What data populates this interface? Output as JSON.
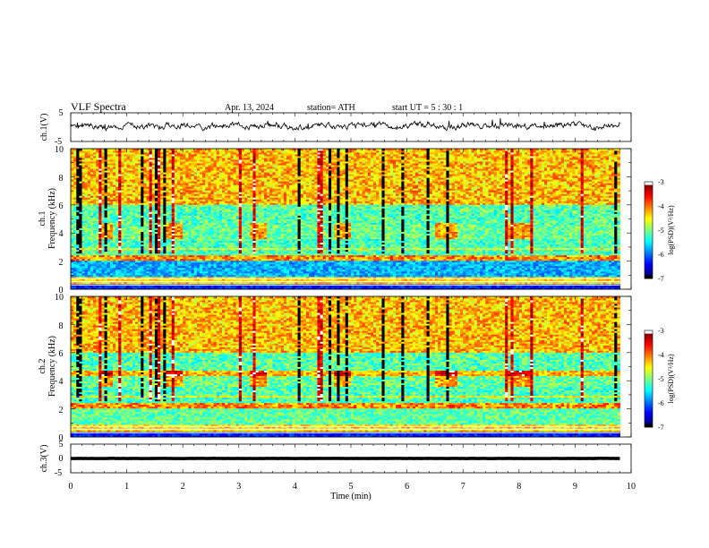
{
  "header": {
    "title": "VLF  Spectra",
    "date": "Apr. 13, 2024",
    "station": "station= ATH",
    "start": "start  UT  =    5  : 30 : 1"
  },
  "chart_data": [
    {
      "type": "line",
      "ylabel": "ch.1(V)",
      "ylim": [
        -5,
        5
      ],
      "yticks": [
        "5",
        "-5"
      ],
      "xlim": [
        0,
        10
      ],
      "baseline": 0.4,
      "description_color": "#000000"
    },
    {
      "type": "heatmap",
      "ylabel_line1": "ch.1",
      "ylabel_line2": "Frequency (kHz)",
      "ylim": [
        0,
        10
      ],
      "yticks": [
        "0",
        "2",
        "4",
        "6",
        "8",
        "10"
      ],
      "xlim": [
        0,
        10
      ],
      "colorbar": {
        "label": "log(PSD)(V²/Hz)",
        "range": [
          -7,
          -3
        ],
        "ticks": [
          "-3",
          "-4",
          "-5",
          "-6",
          "-7"
        ]
      }
    },
    {
      "type": "heatmap",
      "ylabel_line1": "ch.2",
      "ylabel_line2": "Frequency (kHz)",
      "ylim": [
        0,
        10
      ],
      "yticks": [
        "0",
        "2",
        "4",
        "6",
        "8",
        "10"
      ],
      "xlim": [
        0,
        10
      ],
      "colorbar": {
        "label": "log(PSD)(V²/Hz)",
        "range": [
          -7,
          -3
        ],
        "ticks": [
          "-3",
          "-4",
          "-5",
          "-6",
          "-7"
        ]
      }
    },
    {
      "type": "line",
      "ylabel": "ch.3(V)",
      "ylim": [
        -5,
        5
      ],
      "yticks": [
        "5",
        "0",
        "-5"
      ],
      "xlim": [
        0,
        10
      ],
      "baseline": 0.0,
      "xlabel": "Time  (min)",
      "xticks": [
        "0",
        "1",
        "2",
        "3",
        "4",
        "5",
        "6",
        "7",
        "8",
        "9",
        "10"
      ]
    }
  ]
}
